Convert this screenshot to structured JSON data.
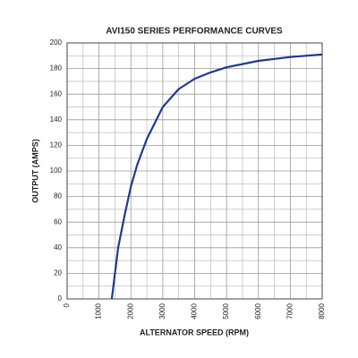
{
  "chart_data": {
    "type": "line",
    "title": "AVI150 SERIES PERFORMANCE CURVES",
    "x_label": "ALTERNATOR SPEED (RPM)",
    "y_label": "OUTPUT (AMPS)",
    "x": [
      1400,
      1600,
      1800,
      2000,
      2200,
      2500,
      3000,
      3500,
      4000,
      4500,
      5000,
      6000,
      7000,
      8000
    ],
    "series": [
      {
        "name": "Output",
        "color": "#1f3b8c",
        "values": [
          0,
          40,
          65,
          88,
          105,
          125,
          150,
          164,
          172,
          177,
          181,
          186,
          189,
          191
        ]
      }
    ],
    "xlim": [
      0,
      8000
    ],
    "xticks": [
      0,
      1000,
      2000,
      3000,
      4000,
      5000,
      6000,
      7000,
      8000
    ],
    "ylim": [
      0,
      200
    ],
    "yticks": [
      0,
      20,
      40,
      60,
      80,
      100,
      120,
      140,
      160,
      180,
      200
    ],
    "grid": true
  }
}
